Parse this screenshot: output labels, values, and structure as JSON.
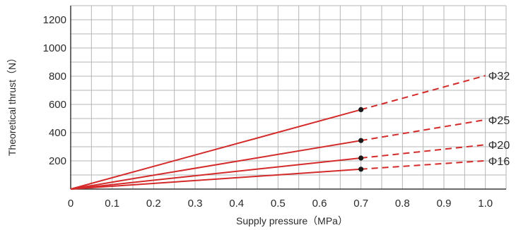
{
  "chart_data": {
    "type": "line",
    "title": "",
    "xlabel": "Supply pressure（MPa）",
    "ylabel": "Theoretical thrust（N）",
    "xlim": [
      0,
      1.05
    ],
    "ylim": [
      0,
      1300
    ],
    "x_ticks": [
      "0",
      "0.1",
      "0.2",
      "0.3",
      "0.4",
      "0.5",
      "0.6",
      "0.7",
      "0.8",
      "0.9",
      "1.0"
    ],
    "y_ticks": [
      "200",
      "400",
      "600",
      "800",
      "1000",
      "1200"
    ],
    "grid": true,
    "legend": "none",
    "marker_x": 0.7,
    "series": [
      {
        "name": "Φ32",
        "x": [
          0,
          0.7,
          1.0
        ],
        "values": [
          0,
          563,
          804
        ]
      },
      {
        "name": "Φ25",
        "x": [
          0,
          0.7,
          1.0
        ],
        "values": [
          0,
          344,
          491
        ]
      },
      {
        "name": "Φ20",
        "x": [
          0,
          0.7,
          1.0
        ],
        "values": [
          0,
          220,
          314
        ]
      },
      {
        "name": "Φ16",
        "x": [
          0,
          0.7,
          1.0
        ],
        "values": [
          0,
          141,
          201
        ]
      }
    ],
    "colors": {
      "line": "#d42a2a",
      "marker": "#1a1a1a",
      "axis": "#3a3a3a",
      "grid": "#b5b5b5"
    }
  }
}
